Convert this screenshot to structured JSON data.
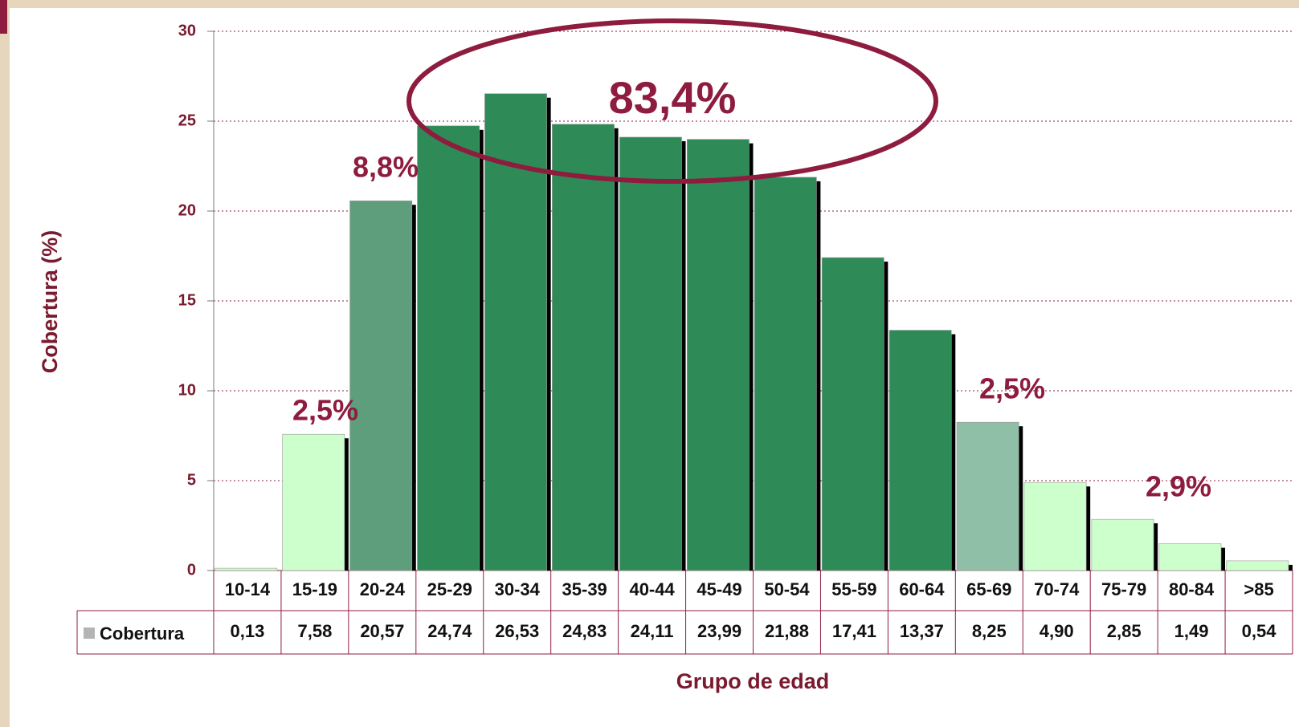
{
  "chart_data": {
    "type": "bar",
    "y_label": "Cobertura (%)",
    "x_label": "Grupo de edad",
    "categories": [
      "10-14",
      "15-19",
      "20-24",
      "25-29",
      "30-34",
      "35-39",
      "40-44",
      "45-49",
      "50-54",
      "55-59",
      "60-64",
      "65-69",
      "70-74",
      "75-79",
      "80-84",
      ">85"
    ],
    "series": [
      {
        "name": "Cobertura",
        "legend_color": "#b4b4b4",
        "colors": [
          "#ccffcc",
          "#ccffcc",
          "#5e9e7c",
          "#2e8b57",
          "#2e8b57",
          "#2e8b57",
          "#2e8b57",
          "#2e8b57",
          "#2e8b57",
          "#2e8b57",
          "#2e8b57",
          "#8fbfa6",
          "#ccffcc",
          "#ccffcc",
          "#ccffcc",
          "#ccffcc"
        ],
        "values": [
          0.13,
          7.58,
          20.57,
          24.74,
          26.53,
          24.83,
          24.11,
          23.99,
          21.88,
          17.41,
          13.37,
          8.25,
          4.9,
          2.85,
          1.49,
          0.54
        ],
        "value_labels": [
          "0,13",
          "7,58",
          "20,57",
          "24,74",
          "26,53",
          "24,83",
          "24,11",
          "23,99",
          "21,88",
          "17,41",
          "13,37",
          "8,25",
          "4,90",
          "2,85",
          "1,49",
          "0,54"
        ]
      }
    ],
    "ylim": [
      0,
      30
    ],
    "yticks": [
      0,
      5,
      10,
      15,
      20,
      25,
      30
    ],
    "grid": true,
    "annotations": [
      "83,4%",
      "8,8%",
      "2,5%",
      "2,5%",
      "2,9%"
    ]
  }
}
